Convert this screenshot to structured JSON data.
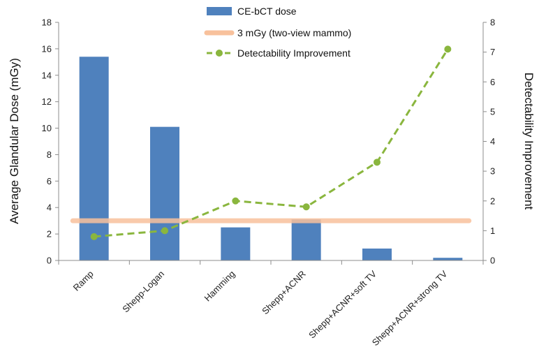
{
  "chart_data": {
    "type": "bar",
    "categories": [
      "Ramp",
      "Shepp-Logan",
      "Hamming",
      "Shepp+ACNR",
      "Shepp+ACNR+soft TV",
      "Shepp+ACNR+strong TV"
    ],
    "series": [
      {
        "name": "CE-bCT dose",
        "type": "bar",
        "axis": "left",
        "color": "#4f81bd",
        "values": [
          15.4,
          10.1,
          2.5,
          3.1,
          0.9,
          0.2
        ]
      },
      {
        "name": "3 mGy (two-view mammo)",
        "type": "line",
        "axis": "left",
        "color": "#f8c19c",
        "values": [
          3,
          3,
          3,
          3,
          3,
          3
        ]
      },
      {
        "name": "Detectability Improvement",
        "type": "line",
        "axis": "right",
        "color": "#8ab63e",
        "style": "dashed",
        "markers": true,
        "values": [
          0.8,
          1.0,
          2.0,
          1.8,
          3.3,
          7.1
        ]
      }
    ],
    "ylabel": "Average Glandular Dose (mGy)",
    "y2label": "Detectability Improvement",
    "ylim": [
      0,
      18
    ],
    "y2lim": [
      0,
      8
    ],
    "yticks": [
      "0",
      "2",
      "4",
      "6",
      "8",
      "10",
      "12",
      "14",
      "16",
      "18"
    ],
    "y2ticks": [
      "0",
      "1",
      "2",
      "3",
      "4",
      "5",
      "6",
      "7",
      "8"
    ],
    "legend": "top-center",
    "grid": false
  }
}
